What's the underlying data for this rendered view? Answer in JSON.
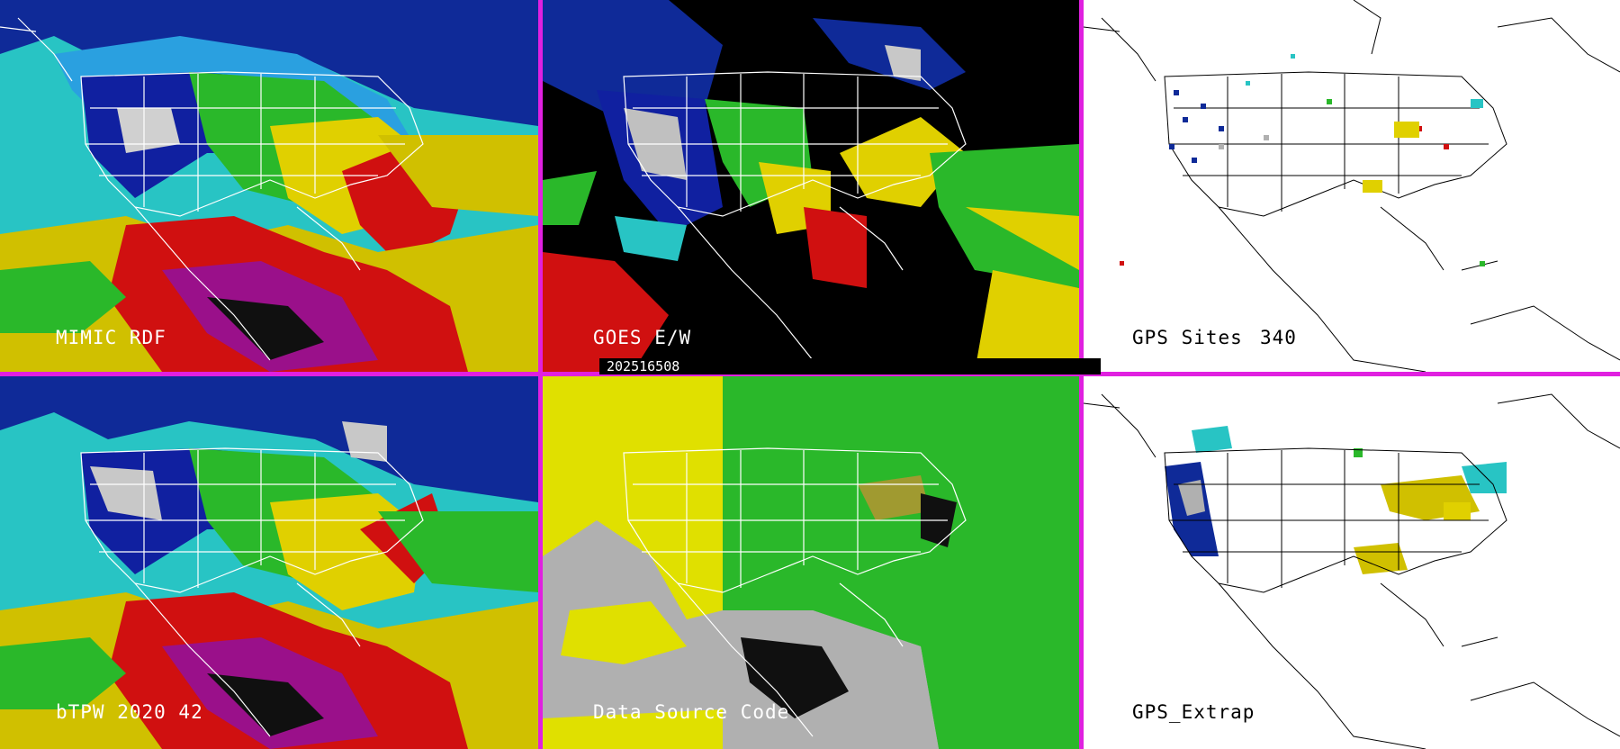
{
  "panels": [
    {
      "id": "mimic",
      "label": "MIMIC RDF"
    },
    {
      "id": "goes",
      "label": "GOES E/W"
    },
    {
      "id": "gps_sites",
      "label": "GPS Sites",
      "count": "340"
    },
    {
      "id": "btpw",
      "label": "bTPW 2020 42"
    },
    {
      "id": "dsc",
      "label": "Data Source Code"
    },
    {
      "id": "gps_extrap",
      "label": "GPS_Extrap"
    }
  ],
  "timestamp": "202516508",
  "colors": {
    "divider": "#e020e0",
    "scale": [
      "#00d8d8",
      "#00a0e8",
      "#0010a0",
      "#00c000",
      "#e8e000",
      "#e00000",
      "#a000a0",
      "#ffffff",
      "#b0b0b0"
    ]
  }
}
